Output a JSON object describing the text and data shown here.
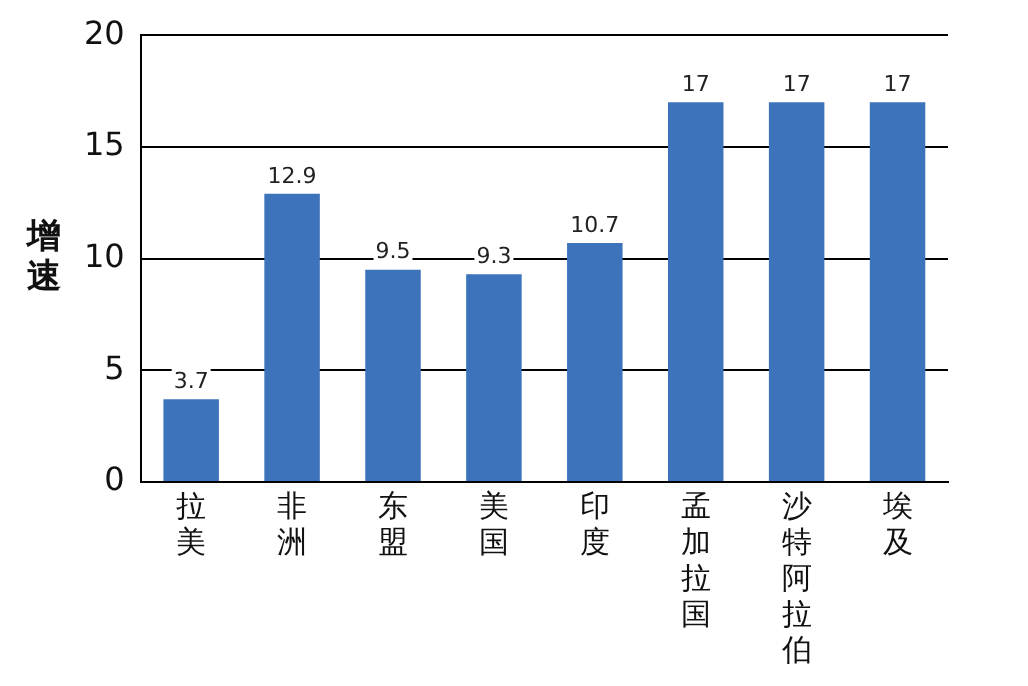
{
  "chart_data": {
    "type": "bar",
    "ylabel": "增速",
    "categories": [
      "拉美",
      "非洲",
      "东盟",
      "美国",
      "印度",
      "孟加拉国",
      "沙特阿拉伯",
      "埃及"
    ],
    "values": [
      3.7,
      12.9,
      9.5,
      9.3,
      10.7,
      17,
      17,
      17
    ],
    "color": "#3d73bb",
    "ylim": [
      0,
      20
    ],
    "yticks": [
      0,
      5,
      10,
      15,
      20
    ],
    "grid": "y",
    "data_labels": true,
    "legend": false
  }
}
